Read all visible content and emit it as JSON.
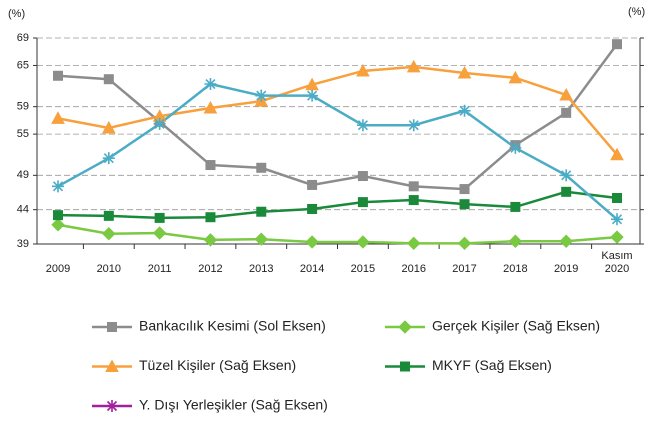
{
  "chart_data": {
    "type": "line",
    "y_unit_left": "(%)",
    "y_unit_right": "(%)",
    "categories": [
      "2009",
      "2010",
      "2011",
      "2012",
      "2013",
      "2014",
      "2015",
      "2016",
      "2017",
      "2018",
      "2019",
      "2020"
    ],
    "x_note": "Kasım",
    "ylim": [
      39,
      69
    ],
    "yticks": [
      39,
      44,
      49,
      55,
      59,
      65,
      69
    ],
    "grid": true,
    "series": [
      {
        "name": "Bankacılık Kesimi (Sol Eksen)",
        "color": "#8c8c8c",
        "marker": "square",
        "values": [
          63.5,
          63.0,
          56.8,
          50.5,
          50.1,
          47.6,
          48.9,
          47.4,
          47.0,
          53.4,
          58.1,
          68.1
        ]
      },
      {
        "name": "Gerçek Kişiler (Sağ Eksen)",
        "color": "#7ac943",
        "marker": "diamond",
        "values": [
          41.8,
          40.5,
          40.6,
          39.6,
          39.7,
          39.3,
          39.3,
          39.1,
          39.1,
          39.4,
          39.4,
          40.0
        ]
      },
      {
        "name": "Tüzel Kişiler (Sağ Eksen)",
        "color": "#f7a03c",
        "marker": "triangle",
        "values": [
          57.3,
          55.9,
          57.6,
          58.8,
          59.8,
          62.2,
          64.2,
          64.8,
          63.9,
          63.2,
          60.7,
          52.0
        ]
      },
      {
        "name": "MKYF (Sağ Eksen)",
        "color": "#1a8a3a",
        "marker": "square",
        "values": [
          43.2,
          43.1,
          42.8,
          42.9,
          43.7,
          44.1,
          45.1,
          45.4,
          44.8,
          44.4,
          46.6,
          45.7
        ]
      },
      {
        "name": "Y. Dışı Yerleşikler (Sağ Eksen)",
        "color": "#4bacc6",
        "legend_color": "#a0209e",
        "marker": "star",
        "values": [
          47.4,
          51.5,
          56.5,
          62.3,
          60.6,
          60.6,
          56.3,
          56.3,
          58.4,
          53.0,
          49.0,
          42.6
        ]
      }
    ]
  }
}
